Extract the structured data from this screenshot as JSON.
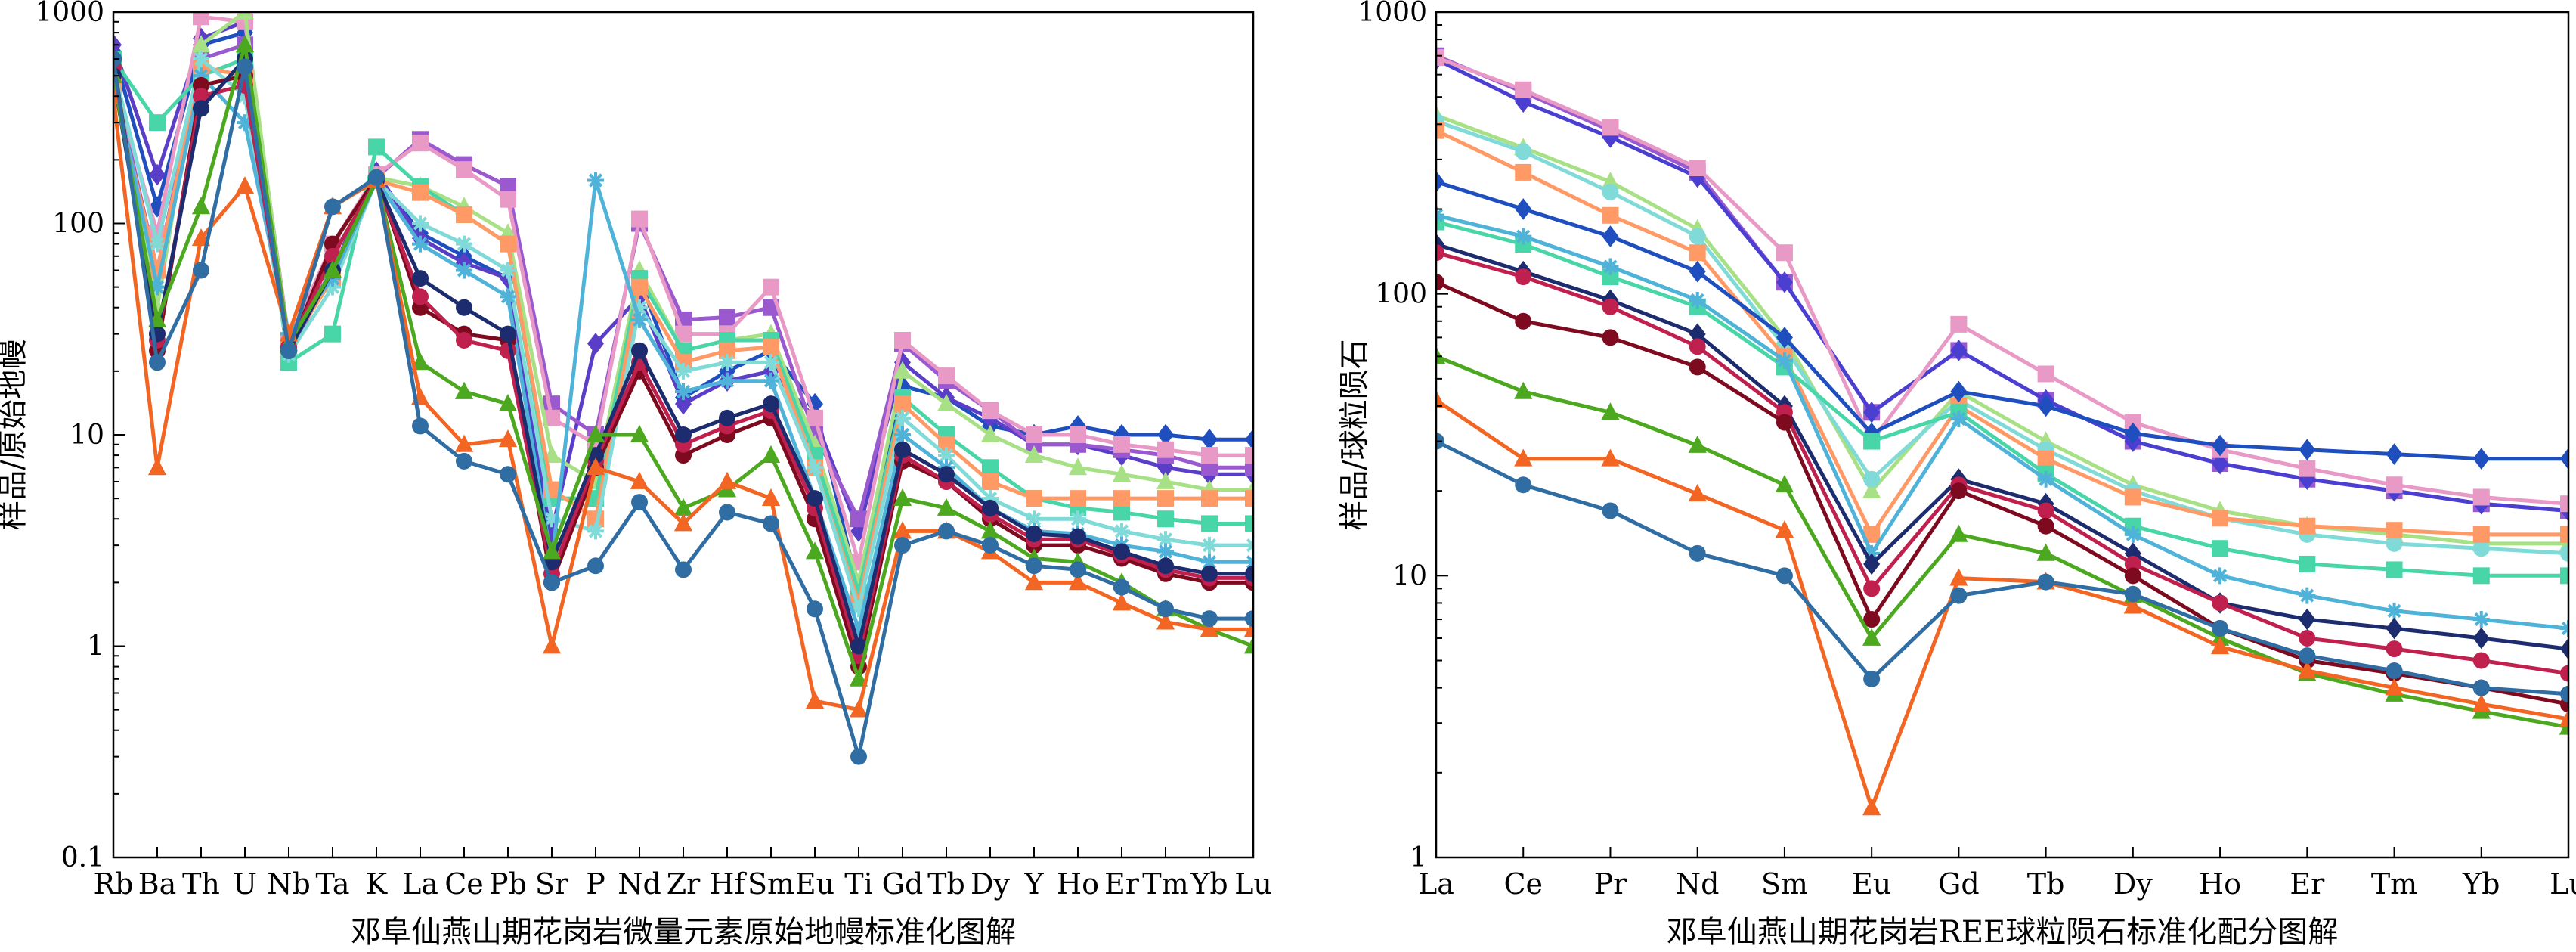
{
  "chart_data": [
    {
      "type": "line",
      "title": "",
      "xlabel": "邓阜仙燕山期花岗岩微量元素原始地幔标准化图解",
      "ylabel": "样品/原始地幔",
      "yscale": "log",
      "ylim": [
        0.1,
        1000
      ],
      "yticks": [
        "0.1",
        "1",
        "10",
        "100",
        "1000"
      ],
      "grid": false,
      "legend": "none",
      "categories": [
        "Rb",
        "Ba",
        "Th",
        "U",
        "Nb",
        "Ta",
        "K",
        "La",
        "Ce",
        "Pb",
        "Sr",
        "P",
        "Nd",
        "Zr",
        "Hf",
        "Sm",
        "Eu",
        "Ti",
        "Gd",
        "Tb",
        "Dy",
        "Y",
        "Ho",
        "Er",
        "Tm",
        "Yb",
        "Lu"
      ],
      "series": [
        {
          "color": "#1f4fbf",
          "marker": "diamond",
          "values": [
            650,
            120,
            700,
            800,
            25,
            60,
            170,
            90,
            70,
            55,
            3,
            null,
            55,
            15,
            20,
            25,
            14,
            1.8,
            17,
            15,
            11,
            10,
            11,
            10,
            10,
            9.5,
            9.5
          ]
        },
        {
          "color": "#5a3ec8",
          "marker": "diamond",
          "values": [
            700,
            170,
            750,
            900,
            28,
            60,
            175,
            85,
            65,
            55,
            3.5,
            27,
            45,
            14,
            18,
            20,
            12,
            3.5,
            22,
            15,
            12,
            9,
            9,
            8,
            7,
            6.5,
            6.5
          ]
        },
        {
          "color": "#9b59d0",
          "marker": "square",
          "values": [
            500,
            60,
            600,
            700,
            24,
            60,
            165,
            250,
            190,
            150,
            14,
            10,
            100,
            35,
            36,
            40,
            10,
            4,
            27,
            18,
            13,
            9,
            9,
            8.5,
            8,
            7,
            7
          ]
        },
        {
          "color": "#e899c6",
          "marker": "square",
          "values": [
            480,
            90,
            950,
            900,
            28,
            80,
            170,
            240,
            180,
            130,
            12,
            9,
            105,
            30,
            30,
            50,
            12,
            2.5,
            28,
            19,
            13,
            10,
            10,
            9,
            8.5,
            8,
            8
          ]
        },
        {
          "color": "#a8e085",
          "marker": "triangle",
          "values": [
            520,
            40,
            700,
            1000,
            26,
            70,
            165,
            150,
            120,
            90,
            8,
            6,
            60,
            25,
            28,
            30,
            9,
            2,
            20,
            14,
            10,
            8,
            7,
            6.5,
            6,
            5.5,
            5.5
          ]
        },
        {
          "color": "#48d6a8",
          "marker": "square",
          "values": [
            600,
            300,
            500,
            600,
            22,
            30,
            230,
            150,
            110,
            80,
            5,
            5,
            55,
            25,
            28,
            28,
            8,
            1.8,
            15,
            10,
            7,
            5,
            4.5,
            4.3,
            4,
            3.8,
            3.8
          ]
        },
        {
          "color": "#ff9a66",
          "marker": "square",
          "values": [
            450,
            60,
            550,
            500,
            26,
            55,
            160,
            140,
            110,
            80,
            5.5,
            4,
            50,
            22,
            25,
            26,
            7,
            1.6,
            14,
            9,
            6,
            5,
            5,
            5,
            5,
            5,
            5
          ]
        },
        {
          "color": "#7fdad8",
          "marker": "cross",
          "values": [
            550,
            80,
            600,
            400,
            24,
            50,
            160,
            100,
            80,
            60,
            4,
            3.5,
            40,
            20,
            22,
            22,
            7,
            1.5,
            12,
            8,
            5,
            4,
            4,
            3.5,
            3.2,
            3,
            3
          ]
        },
        {
          "color": "#4fb3d9",
          "marker": "cross",
          "values": [
            500,
            50,
            500,
            300,
            30,
            55,
            160,
            80,
            60,
            45,
            2.5,
            160,
            35,
            16,
            18,
            18,
            5,
            1.2,
            10,
            7,
            4.5,
            3.5,
            3.4,
            3,
            2.8,
            2.5,
            2.5
          ]
        },
        {
          "color": "#7d0a1e",
          "marker": "circle",
          "values": [
            600,
            25,
            450,
            500,
            25,
            80,
            165,
            40,
            30,
            28,
            2,
            7,
            20,
            8,
            10,
            12,
            4,
            0.8,
            7.5,
            6,
            4,
            3,
            3,
            2.6,
            2.2,
            2,
            2
          ]
        },
        {
          "color": "#c0204e",
          "marker": "circle",
          "values": [
            550,
            28,
            400,
            450,
            26,
            70,
            160,
            45,
            28,
            25,
            2.2,
            7.5,
            22,
            9,
            11,
            13,
            4.5,
            0.9,
            8,
            6,
            4.2,
            3.2,
            3.2,
            2.7,
            2.3,
            2.1,
            2.1
          ]
        },
        {
          "color": "#1c2c6e",
          "marker": "circle",
          "values": [
            500,
            30,
            350,
            600,
            25,
            60,
            160,
            55,
            40,
            30,
            2.5,
            8,
            25,
            10,
            12,
            14,
            5,
            1,
            8.5,
            6.5,
            4.5,
            3.4,
            3.3,
            2.8,
            2.4,
            2.2,
            2.2
          ]
        },
        {
          "color": "#4ca81e",
          "marker": "triangle",
          "values": [
            500,
            35,
            120,
            700,
            27,
            60,
            160,
            22,
            16,
            14,
            2.8,
            10,
            10,
            4.5,
            5.5,
            8,
            2.8,
            0.7,
            5,
            4.5,
            3.5,
            2.6,
            2.5,
            2,
            1.5,
            1.2,
            1
          ]
        },
        {
          "color": "#f26522",
          "marker": "triangle",
          "values": [
            400,
            7,
            85,
            150,
            30,
            120,
            160,
            15,
            9,
            9.5,
            1,
            7,
            6,
            3.8,
            6,
            5,
            0.55,
            0.5,
            3.5,
            3.5,
            2.8,
            2,
            2,
            1.6,
            1.3,
            1.2,
            1.2
          ]
        },
        {
          "color": "#2f6da3",
          "marker": "circle",
          "values": [
            600,
            22,
            60,
            550,
            25,
            120,
            165,
            11,
            7.5,
            6.5,
            2,
            2.4,
            4.8,
            2.3,
            4.3,
            3.8,
            1.5,
            0.3,
            3,
            3.5,
            3,
            2.4,
            2.3,
            1.9,
            1.5,
            1.35,
            1.35
          ]
        }
      ]
    },
    {
      "type": "line",
      "title": "",
      "xlabel": "邓阜仙燕山期花岗岩REE球粒陨石标准化配分图解",
      "ylabel": "样品/球粒陨石",
      "yscale": "log",
      "ylim": [
        1,
        1000
      ],
      "yticks": [
        "1",
        "10",
        "100",
        "1000"
      ],
      "grid": false,
      "legend": "none",
      "categories": [
        "La",
        "Ce",
        "Pr",
        "Nd",
        "Sm",
        "Eu",
        "Gd",
        "Tb",
        "Dy",
        "Ho",
        "Er",
        "Tm",
        "Yb",
        "Lu"
      ],
      "series": [
        {
          "color": "#9b59d0",
          "marker": "square",
          "values": [
            700,
            520,
            380,
            270,
            110,
            38,
            63,
            42,
            30,
            25,
            22,
            20,
            18,
            17
          ]
        },
        {
          "color": "#4a3fd0",
          "marker": "diamond",
          "values": [
            680,
            480,
            360,
            260,
            110,
            38,
            63,
            42,
            30,
            25,
            22,
            20,
            18,
            17
          ]
        },
        {
          "color": "#e899c6",
          "marker": "square",
          "values": [
            690,
            530,
            390,
            280,
            140,
            30,
            78,
            52,
            35,
            28,
            24,
            21,
            19,
            18
          ]
        },
        {
          "color": "#a8e085",
          "marker": "triangle",
          "values": [
            430,
            330,
            250,
            170,
            70,
            20,
            45,
            30,
            21,
            17,
            15,
            14,
            13,
            13
          ]
        },
        {
          "color": "#7fdad8",
          "marker": "circle",
          "values": [
            410,
            320,
            230,
            160,
            65,
            22,
            42,
            28,
            20,
            16,
            14,
            13,
            12.5,
            12
          ]
        },
        {
          "color": "#ff9a66",
          "marker": "square",
          "values": [
            380,
            270,
            190,
            140,
            60,
            14,
            40,
            26,
            19,
            16,
            15,
            14.5,
            14,
            14
          ]
        },
        {
          "color": "#1f4fbf",
          "marker": "diamond",
          "values": [
            250,
            200,
            160,
            120,
            70,
            32,
            45,
            40,
            32,
            29,
            28,
            27,
            26,
            26
          ]
        },
        {
          "color": "#48d6a8",
          "marker": "square",
          "values": [
            180,
            150,
            115,
            90,
            55,
            30,
            38,
            23,
            15,
            12.5,
            11,
            10.5,
            10,
            10
          ]
        },
        {
          "color": "#4fb3d9",
          "marker": "cross",
          "values": [
            190,
            160,
            125,
            95,
            58,
            12,
            36,
            22,
            14,
            10,
            8.5,
            7.5,
            7,
            6.5
          ]
        },
        {
          "color": "#1c2c6e",
          "marker": "diamond",
          "values": [
            150,
            120,
            95,
            72,
            40,
            11,
            22,
            18,
            12,
            8,
            7,
            6.5,
            6,
            5.5
          ]
        },
        {
          "color": "#c0204e",
          "marker": "circle",
          "values": [
            140,
            115,
            90,
            65,
            38,
            9,
            21,
            17,
            11,
            8,
            6,
            5.5,
            5,
            4.5
          ]
        },
        {
          "color": "#7d0a1e",
          "marker": "circle",
          "values": [
            110,
            80,
            70,
            55,
            35,
            7,
            20,
            15,
            10,
            6.5,
            5,
            4.5,
            4,
            3.5
          ]
        },
        {
          "color": "#4ca81e",
          "marker": "triangle",
          "values": [
            60,
            45,
            38,
            29,
            21,
            6,
            14,
            12,
            8.5,
            6,
            4.5,
            3.8,
            3.3,
            2.9
          ]
        },
        {
          "color": "#f26522",
          "marker": "triangle",
          "values": [
            42,
            26,
            26,
            19.5,
            14.5,
            1.5,
            9.8,
            9.5,
            7.8,
            5.6,
            4.6,
            4,
            3.5,
            3.1
          ]
        },
        {
          "color": "#2f6da3",
          "marker": "circle",
          "values": [
            30,
            21,
            17,
            12,
            10,
            4.3,
            8.5,
            9.5,
            8.6,
            6.5,
            5.2,
            4.6,
            4,
            3.8
          ]
        }
      ]
    }
  ]
}
